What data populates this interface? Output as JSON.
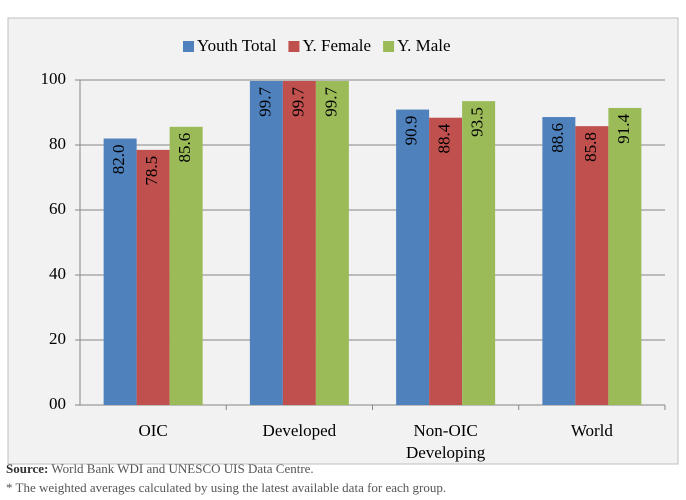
{
  "chart_data": {
    "type": "bar",
    "categories": [
      "OIC",
      "Developed",
      "Non-OIC Developing",
      "World"
    ],
    "series": [
      {
        "name": "Youth Total",
        "color": "#4f81bd",
        "values": [
          82.0,
          99.7,
          90.9,
          88.6
        ],
        "value_labels": [
          "82.0",
          "99.7",
          "90.9",
          "88.6"
        ]
      },
      {
        "name": "Y. Female",
        "color": "#c0504d",
        "values": [
          78.5,
          99.7,
          88.4,
          85.8
        ],
        "value_labels": [
          "78.5",
          "99.7",
          "88.4",
          "85.8"
        ]
      },
      {
        "name": "Y. Male",
        "color": "#9bbb59",
        "values": [
          85.6,
          99.7,
          93.5,
          91.4
        ],
        "value_labels": [
          "85.6",
          "99.7",
          "93.5",
          "91.4"
        ]
      }
    ],
    "ylim": [
      0,
      100
    ],
    "yticks": [
      {
        "value": 0,
        "label": "00"
      },
      20,
      40,
      60,
      80,
      100
    ],
    "legend": "top",
    "source_label": "Source:",
    "source_text": "World Bank WDI and UNESCO UIS Data Centre.",
    "note": "* The weighted averages calculated by using the latest available data for each group."
  }
}
